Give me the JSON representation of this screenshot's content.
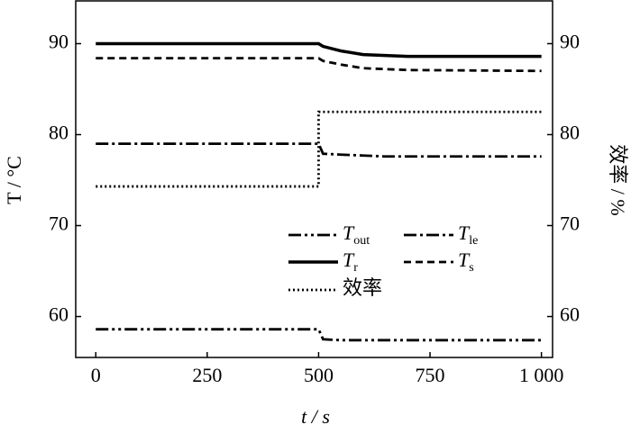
{
  "chart_data": {
    "type": "line",
    "xlabel": "t / s",
    "ylabel": "T / °C",
    "y2label": "效率 / %",
    "x": [
      0,
      500,
      500,
      510,
      550,
      600,
      650,
      700,
      1000
    ],
    "series": [
      {
        "name": "T",
        "name_sub": "out",
        "color": "#000000",
        "style": "dashdotdot",
        "values": [
          58.6,
          58.6,
          58.6,
          57.5,
          57.4,
          57.4,
          57.4,
          57.4,
          57.4
        ]
      },
      {
        "name": "T",
        "name_sub": "le",
        "color": "#000000",
        "style": "dashdot",
        "values": [
          79,
          79,
          79,
          77.9,
          77.8,
          77.7,
          77.6,
          77.6,
          77.6
        ]
      },
      {
        "name": "T",
        "name_sub": "r",
        "color": "#000000",
        "style": "solid",
        "values": [
          90,
          90,
          90,
          89.7,
          89.2,
          88.8,
          88.7,
          88.6,
          88.6
        ]
      },
      {
        "name": "T",
        "name_sub": "s",
        "color": "#000000",
        "style": "dashed",
        "values": [
          88.4,
          88.4,
          88.4,
          88.1,
          87.7,
          87.3,
          87.2,
          87.1,
          87.0
        ]
      },
      {
        "name": "效率",
        "color": "#000000",
        "style": "dotted",
        "axis": "y2",
        "values": [
          74.3,
          74.3,
          82.5,
          82.5,
          82.5,
          82.5,
          82.5,
          82.5,
          82.5
        ]
      }
    ],
    "xlim": [
      -45,
      1025
    ],
    "xticks": [
      0,
      250,
      500,
      750,
      {
        "value": 1000,
        "label": "1 000"
      }
    ],
    "ylim": [
      55.5,
      94.7
    ],
    "yticks": [
      60,
      70,
      80,
      90
    ],
    "y2lim": [
      55.5,
      94.7
    ],
    "y2ticks": [
      60,
      70,
      80,
      90
    ]
  }
}
